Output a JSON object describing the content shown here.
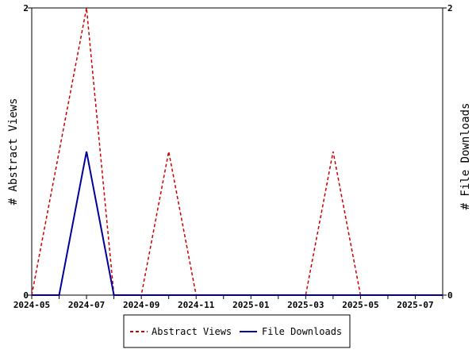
{
  "chart_data": {
    "type": "line",
    "title": "",
    "x": [
      "2024-05",
      "2024-06",
      "2024-07",
      "2024-08",
      "2024-09",
      "2024-10",
      "2024-11",
      "2024-12",
      "2025-01",
      "2025-02",
      "2025-03",
      "2025-04",
      "2025-05",
      "2025-06",
      "2025-07",
      "2025-08"
    ],
    "x_tick_labels": [
      "2024-05",
      "2024-07",
      "2024-09",
      "2024-11",
      "2025-01",
      "2025-03",
      "2025-05",
      "2025-07"
    ],
    "xlim": [
      "2024-05",
      "2025-08"
    ],
    "ylabel_left": "# Abstract Views",
    "ylabel_right": "# File Downloads",
    "ylim_left": [
      0,
      2
    ],
    "ylim_right": [
      0,
      2
    ],
    "y_tick_labels_left": [
      "0",
      "2"
    ],
    "y_tick_labels_right": [
      "0",
      "2"
    ],
    "grid": false,
    "legend_position": "bottom-center",
    "series": [
      {
        "name": "Abstract Views",
        "axis": "left",
        "color": "#cc0000",
        "style": "dashed",
        "values": [
          0,
          1,
          2,
          0,
          0,
          1,
          0,
          0,
          0,
          0,
          0,
          1,
          0,
          0,
          0,
          0
        ]
      },
      {
        "name": "File Downloads",
        "axis": "right",
        "color": "#000099",
        "style": "solid",
        "values": [
          0,
          0,
          1,
          0,
          0,
          0,
          0,
          0,
          0,
          0,
          0,
          0,
          0,
          0,
          0,
          0
        ]
      }
    ]
  }
}
